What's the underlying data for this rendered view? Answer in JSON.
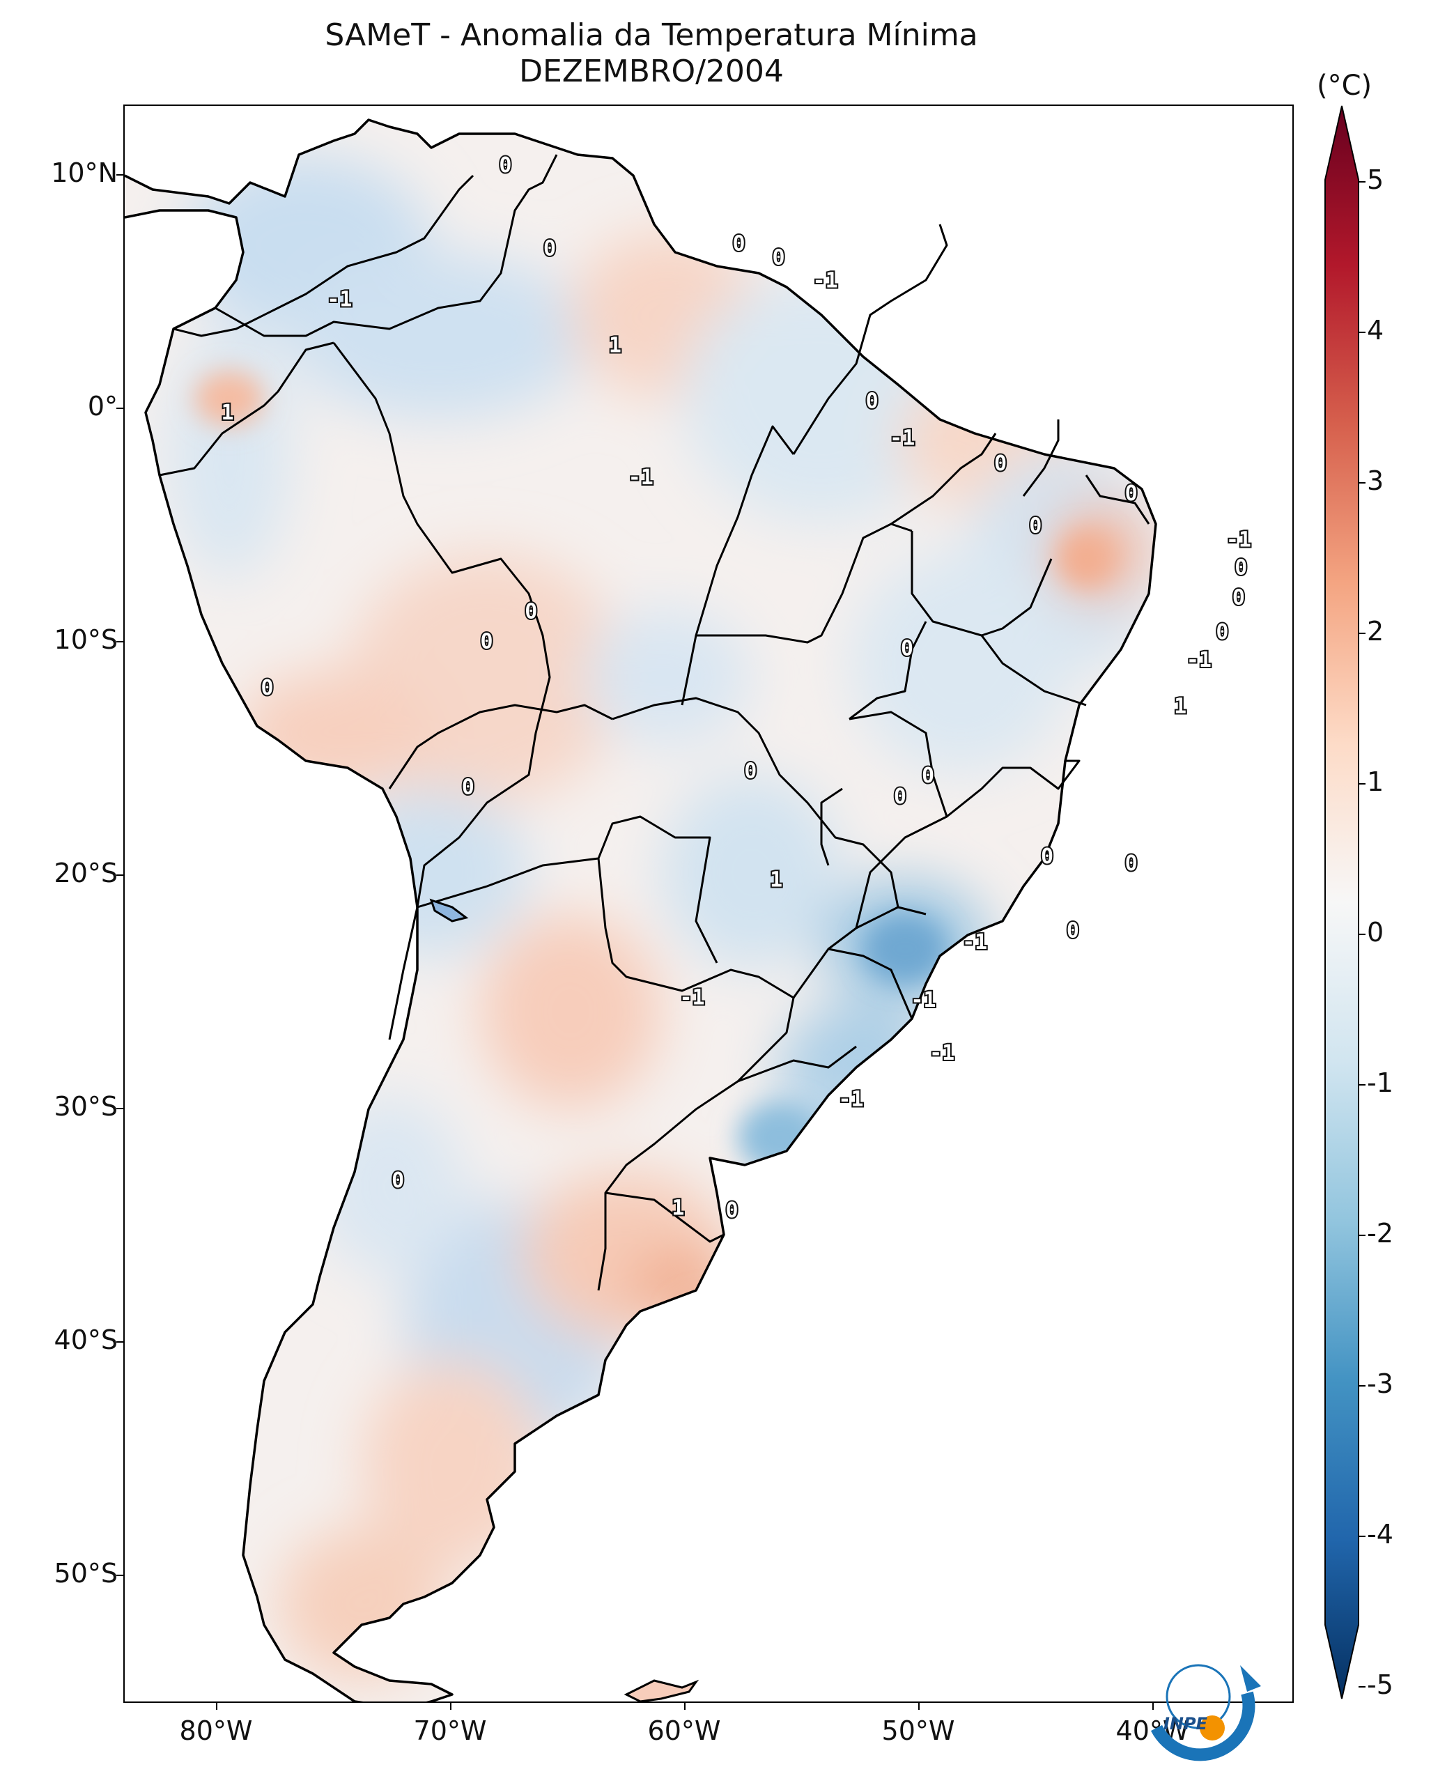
{
  "title": {
    "line1": "SAMeT - Anomalia da Temperatura Mínima",
    "line2": "DEZEMBRO/2004"
  },
  "map": {
    "lat_ticks": [
      "10°N",
      "0°",
      "10°S",
      "20°S",
      "30°S",
      "40°S",
      "50°S"
    ],
    "lon_ticks": [
      "80°W",
      "70°W",
      "60°W",
      "50°W",
      "40°W"
    ],
    "extent": {
      "lon": [
        -83,
        -33
      ],
      "lat": [
        -56,
        13
      ]
    },
    "contour_labels": [
      {
        "text": "0",
        "lon": -66.7,
        "lat": 10.4
      },
      {
        "text": "0",
        "lon": -64.8,
        "lat": 6.8
      },
      {
        "text": "0",
        "lon": -56.7,
        "lat": 7.0
      },
      {
        "text": "0",
        "lon": -55.0,
        "lat": 6.4
      },
      {
        "text": "-1",
        "lon": -53.0,
        "lat": 5.4
      },
      {
        "text": "-1",
        "lon": -73.8,
        "lat": 4.6
      },
      {
        "text": "1",
        "lon": -62.0,
        "lat": 2.6
      },
      {
        "text": "0",
        "lon": -51.0,
        "lat": 0.2
      },
      {
        "text": "1",
        "lon": -78.6,
        "lat": -0.3
      },
      {
        "text": "-1",
        "lon": -49.7,
        "lat": -1.4
      },
      {
        "text": "-1",
        "lon": -60.9,
        "lat": -3.1
      },
      {
        "text": "0",
        "lon": -45.5,
        "lat": -2.5
      },
      {
        "text": "0",
        "lon": -39.9,
        "lat": -3.8
      },
      {
        "text": "0",
        "lon": -44.0,
        "lat": -5.2
      },
      {
        "text": "-1",
        "lon": -35.3,
        "lat": -5.8
      },
      {
        "text": "0",
        "lon": -35.2,
        "lat": -7.0
      },
      {
        "text": "0",
        "lon": -35.3,
        "lat": -8.3
      },
      {
        "text": "0",
        "lon": -65.6,
        "lat": -8.9
      },
      {
        "text": "0",
        "lon": -36.0,
        "lat": -9.8
      },
      {
        "text": "0",
        "lon": -67.5,
        "lat": -10.2
      },
      {
        "text": "0",
        "lon": -49.5,
        "lat": -10.5
      },
      {
        "text": "-1",
        "lon": -37.0,
        "lat": -11.0
      },
      {
        "text": "0",
        "lon": -76.9,
        "lat": -12.2
      },
      {
        "text": "1",
        "lon": -37.8,
        "lat": -13.0
      },
      {
        "text": "0",
        "lon": -56.2,
        "lat": -15.8
      },
      {
        "text": "0",
        "lon": -48.6,
        "lat": -16.0
      },
      {
        "text": "0",
        "lon": -49.8,
        "lat": -16.9
      },
      {
        "text": "0",
        "lon": -68.3,
        "lat": -16.5
      },
      {
        "text": "0",
        "lon": -43.5,
        "lat": -19.5
      },
      {
        "text": "1",
        "lon": -55.1,
        "lat": -20.5
      },
      {
        "text": "0",
        "lon": -39.9,
        "lat": -19.8
      },
      {
        "text": "0",
        "lon": -42.4,
        "lat": -22.7
      },
      {
        "text": "-1",
        "lon": -46.6,
        "lat": -23.2
      },
      {
        "text": "-1",
        "lon": -58.7,
        "lat": -25.6
      },
      {
        "text": "-1",
        "lon": -48.8,
        "lat": -25.7
      },
      {
        "text": "-1",
        "lon": -48.0,
        "lat": -28.0
      },
      {
        "text": "-1",
        "lon": -51.9,
        "lat": -30.0
      },
      {
        "text": "0",
        "lon": -71.3,
        "lat": -33.5
      },
      {
        "text": "1",
        "lon": -59.3,
        "lat": -34.7
      },
      {
        "text": "0",
        "lon": -57.0,
        "lat": -34.8
      }
    ]
  },
  "colorbar": {
    "unit": "(°C)",
    "ticks": [
      "5",
      "4",
      "3",
      "2",
      "1",
      "0",
      "-1",
      "-2",
      "-3",
      "-4",
      "-5"
    ],
    "range": [
      -5,
      5
    ],
    "colors": [
      "#053061",
      "#2166ac",
      "#4393c3",
      "#92c5de",
      "#d1e5f0",
      "#f7f7f7",
      "#fddbc7",
      "#f4a582",
      "#d6604d",
      "#b2182b",
      "#67001f"
    ]
  },
  "logo": {
    "text": "INPE"
  }
}
